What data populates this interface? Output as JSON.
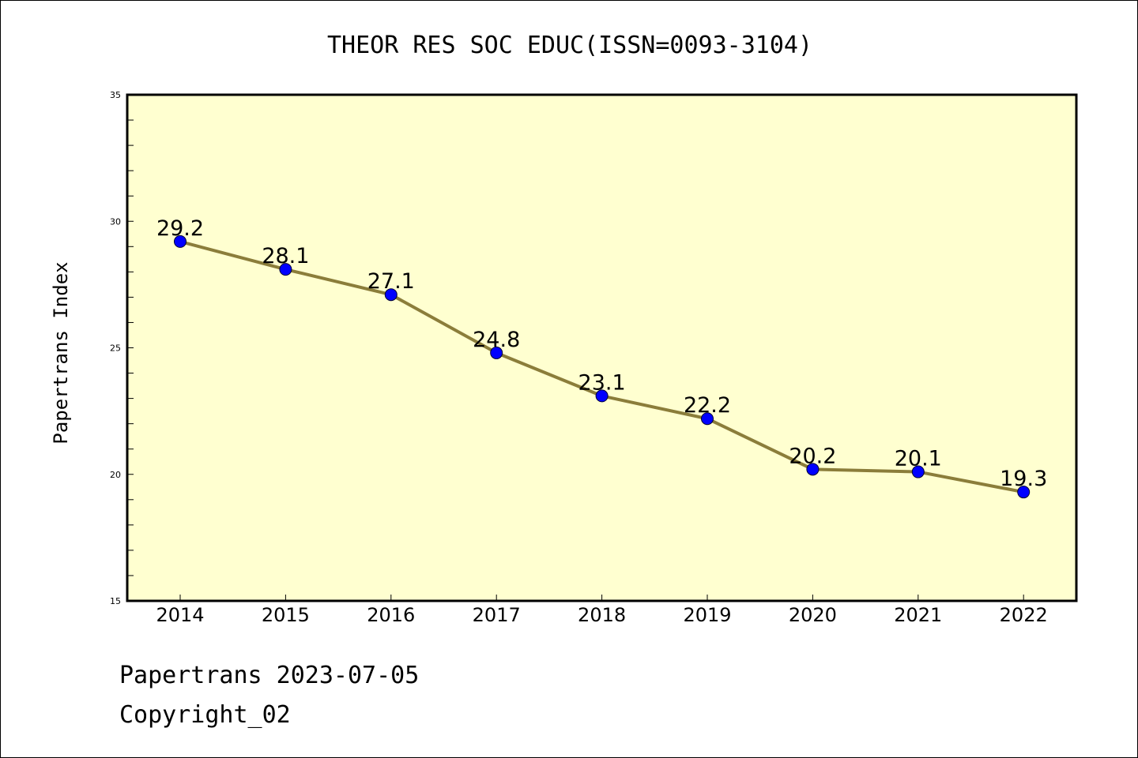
{
  "chart_data": {
    "type": "line",
    "title": "THEOR RES SOC EDUC(ISSN=0093-3104)",
    "xlabel": "",
    "ylabel": "Papertrans Index",
    "categories": [
      "2014",
      "2015",
      "2016",
      "2017",
      "2018",
      "2019",
      "2020",
      "2021",
      "2022"
    ],
    "values": [
      29.2,
      28.1,
      27.1,
      24.8,
      23.1,
      22.2,
      20.2,
      20.1,
      19.3
    ],
    "data_labels": [
      "29.2",
      "28.1",
      "27.1",
      "24.8",
      "23.1",
      "22.2",
      "20.2",
      "20.1",
      "19.3"
    ],
    "ylim": [
      15,
      35
    ],
    "yticks": [
      "15",
      "20",
      "25",
      "30",
      "35"
    ],
    "grid": false,
    "legend": "none",
    "colors": {
      "plot_background": "#ffffd0",
      "line": "#8b7d3a",
      "marker": "#0000ff",
      "axis": "#000000"
    }
  },
  "footer": {
    "line1": "Papertrans 2023-07-05",
    "line2": "Copyright_02"
  }
}
